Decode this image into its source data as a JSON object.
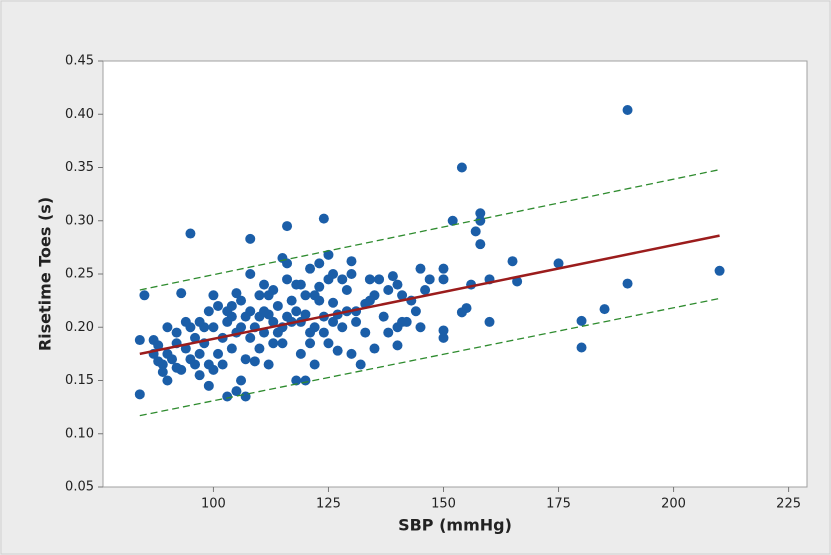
{
  "chart_data": {
    "type": "scatter",
    "x_label": "SBP (mmHg)",
    "y_label": "Risetime Toes (s)",
    "color": "#1b5ea8",
    "x": [
      84,
      84,
      85,
      87,
      88,
      90,
      92,
      93,
      95,
      108,
      116,
      124,
      154,
      190,
      210,
      190,
      185,
      180,
      180,
      175,
      165,
      166,
      160,
      158,
      158,
      157,
      158,
      156,
      160,
      152,
      155,
      154,
      150,
      150,
      150,
      150,
      145,
      147,
      143,
      142,
      140,
      140,
      140,
      139,
      138,
      136,
      135,
      134,
      133,
      131,
      130,
      130,
      129,
      128,
      127,
      126,
      125,
      125,
      124,
      123,
      122,
      122,
      121,
      120,
      120,
      119,
      118,
      117,
      116,
      116,
      115,
      114,
      113,
      112,
      111,
      110,
      110,
      109,
      108,
      107,
      106,
      105,
      105,
      104,
      103,
      102,
      101,
      100,
      100,
      100,
      99,
      99,
      98,
      98,
      97,
      96,
      96,
      95,
      94,
      94,
      93,
      92,
      91,
      90,
      90,
      89,
      88,
      87,
      103,
      107,
      112,
      115,
      118,
      120,
      122,
      125,
      127,
      130,
      132,
      135,
      141,
      145,
      113,
      117,
      119,
      121,
      123,
      106,
      108,
      110,
      111,
      113,
      97,
      99,
      101,
      102,
      104,
      106,
      109,
      105,
      95,
      97,
      92,
      89,
      108,
      112,
      115,
      118,
      123,
      126,
      128,
      103,
      104,
      107,
      111,
      114,
      116,
      119,
      121,
      124,
      126,
      129,
      131,
      133,
      134,
      137,
      138,
      141,
      144,
      146
    ],
    "y": [
      0.137,
      0.188,
      0.23,
      0.188,
      0.168,
      0.175,
      0.185,
      0.232,
      0.288,
      0.283,
      0.295,
      0.302,
      0.35,
      0.404,
      0.253,
      0.241,
      0.217,
      0.206,
      0.181,
      0.26,
      0.262,
      0.243,
      0.205,
      0.307,
      0.3,
      0.29,
      0.278,
      0.24,
      0.245,
      0.3,
      0.218,
      0.214,
      0.255,
      0.245,
      0.197,
      0.19,
      0.255,
      0.245,
      0.225,
      0.205,
      0.2,
      0.183,
      0.24,
      0.248,
      0.235,
      0.245,
      0.23,
      0.225,
      0.222,
      0.215,
      0.262,
      0.25,
      0.235,
      0.2,
      0.212,
      0.223,
      0.268,
      0.245,
      0.21,
      0.238,
      0.23,
      0.2,
      0.255,
      0.212,
      0.23,
      0.175,
      0.215,
      0.205,
      0.26,
      0.245,
      0.2,
      0.22,
      0.235,
      0.212,
      0.195,
      0.23,
      0.18,
      0.168,
      0.215,
      0.17,
      0.15,
      0.232,
      0.14,
      0.21,
      0.205,
      0.19,
      0.175,
      0.2,
      0.23,
      0.16,
      0.165,
      0.215,
      0.185,
      0.2,
      0.175,
      0.19,
      0.165,
      0.2,
      0.18,
      0.205,
      0.16,
      0.195,
      0.17,
      0.15,
      0.2,
      0.165,
      0.183,
      0.175,
      0.135,
      0.135,
      0.165,
      0.185,
      0.15,
      0.15,
      0.165,
      0.185,
      0.178,
      0.175,
      0.165,
      0.18,
      0.205,
      0.2,
      0.185,
      0.225,
      0.24,
      0.195,
      0.225,
      0.2,
      0.19,
      0.21,
      0.24,
      0.205,
      0.205,
      0.145,
      0.22,
      0.165,
      0.18,
      0.225,
      0.2,
      0.195,
      0.17,
      0.155,
      0.162,
      0.158,
      0.25,
      0.23,
      0.265,
      0.24,
      0.26,
      0.25,
      0.245,
      0.215,
      0.22,
      0.21,
      0.215,
      0.195,
      0.21,
      0.205,
      0.185,
      0.195,
      0.205,
      0.215,
      0.205,
      0.195,
      0.245,
      0.21,
      0.195,
      0.23,
      0.215,
      0.235
    ],
    "lines": [
      {
        "x": [
          84,
          210
        ],
        "y": [
          0.175,
          0.286
        ],
        "color": "#9b1c1c",
        "dashed": false
      },
      {
        "x": [
          84,
          210
        ],
        "y": [
          0.235,
          0.348
        ],
        "color": "#2e8b2e",
        "dashed": true
      },
      {
        "x": [
          84,
          210
        ],
        "y": [
          0.117,
          0.227
        ],
        "color": "#2e8b2e",
        "dashed": true
      }
    ],
    "xlim": [
      76,
      229
    ],
    "ylim": [
      0.05,
      0.45
    ],
    "xticks": [
      100,
      125,
      150,
      175,
      200,
      225
    ],
    "yticks": [
      0.05,
      {
        "value": 0.1,
        "label": "0.10"
      },
      0.15,
      {
        "value": 0.2,
        "label": "0.20"
      },
      0.25,
      {
        "value": 0.3,
        "label": "0.30"
      },
      0.35,
      {
        "value": 0.4,
        "label": "0.40"
      },
      0.45
    ]
  }
}
